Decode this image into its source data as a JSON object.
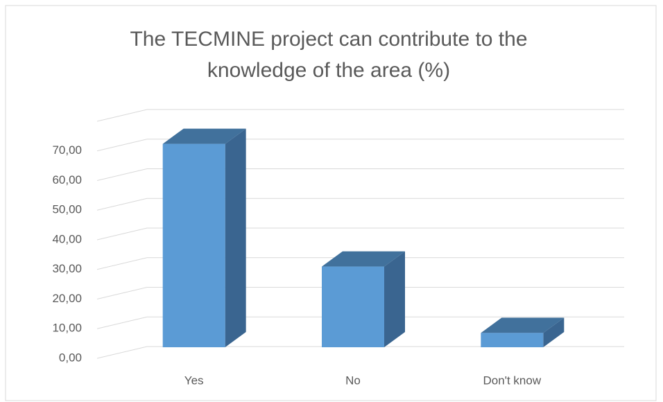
{
  "chart_data": {
    "type": "bar",
    "title_lines": [
      "The TECMINE project can contribute to the",
      "knowledge of the area (%)"
    ],
    "categories": [
      "Yes",
      "No",
      "Don't know"
    ],
    "values": [
      68.4,
      27.0,
      4.6
    ],
    "color": "#5b9bd5",
    "ylim": [
      0,
      80
    ],
    "yticks": [
      {
        "value": 0,
        "label": "0,00"
      },
      {
        "value": 10,
        "label": "10,00"
      },
      {
        "value": 20,
        "label": "20,00"
      },
      {
        "value": 30,
        "label": "30,00"
      },
      {
        "value": 40,
        "label": "40,00"
      },
      {
        "value": 50,
        "label": "50,00"
      },
      {
        "value": 60,
        "label": "60,00"
      },
      {
        "value": 70,
        "label": "70,00"
      }
    ],
    "grid": true
  }
}
